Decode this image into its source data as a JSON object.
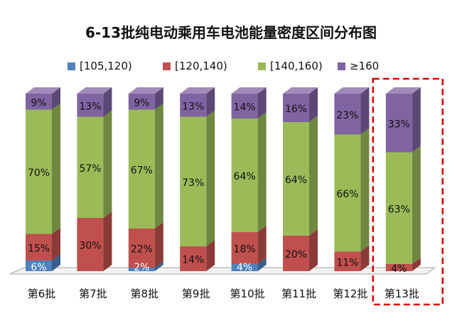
{
  "chart_data": {
    "type": "bar",
    "stacked": true,
    "percent": true,
    "title": "6-13批纯电动乘用车电池能量密度区间分布图",
    "categories": [
      "第6批",
      "第7批",
      "第8批",
      "第9批",
      "第10批",
      "第11批",
      "第12批",
      "第13批"
    ],
    "series": [
      {
        "name": "[105,120)",
        "color": "#4F81BD",
        "values": [
          6,
          0,
          2,
          0,
          4,
          0,
          0,
          0
        ],
        "labels": [
          "6%",
          "",
          "2%",
          "",
          "4%",
          "",
          "",
          ""
        ]
      },
      {
        "name": "[120,140)",
        "color": "#C0504D",
        "values": [
          15,
          30,
          22,
          14,
          18,
          20,
          11,
          4
        ],
        "labels": [
          "15%",
          "30%",
          "22%",
          "14%",
          "18%",
          "20%",
          "11%",
          "4%"
        ]
      },
      {
        "name": "[140,160)",
        "color": "#9BBB59",
        "values": [
          70,
          57,
          67,
          73,
          64,
          64,
          66,
          63
        ],
        "labels": [
          "70%",
          "57%",
          "67%",
          "73%",
          "64%",
          "64%",
          "66%",
          "63%"
        ]
      },
      {
        "name": "≥160",
        "color": "#8064A2",
        "values": [
          9,
          13,
          9,
          13,
          14,
          16,
          23,
          33
        ],
        "labels": [
          "9%",
          "13%",
          "9%",
          "13%",
          "14%",
          "16%",
          "23%",
          "33%"
        ]
      }
    ],
    "legend_position": "top",
    "grid": false,
    "highlight_category": "第13批",
    "highlight_color": "#E00000"
  }
}
